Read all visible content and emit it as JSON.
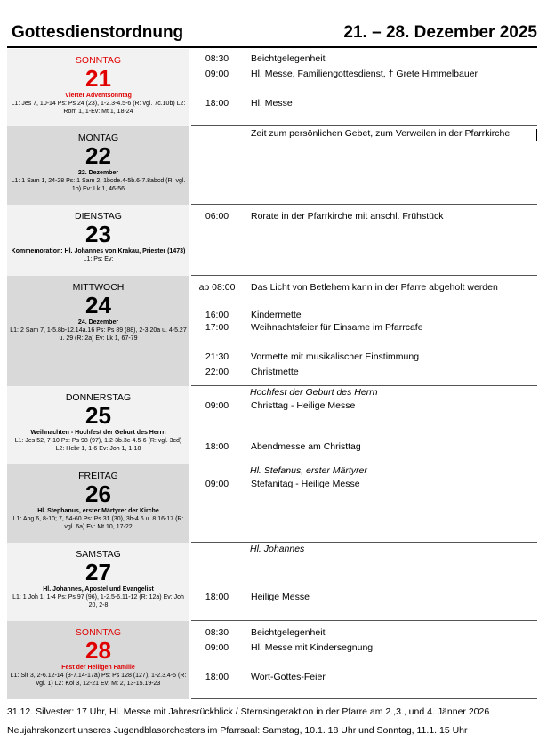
{
  "header": {
    "title": "Gottesdienstordnung",
    "dates": "21. – 28. Dezember 2025"
  },
  "days": [
    {
      "weekday": "SONNTAG",
      "num": "21",
      "feast": "Vierter Adventsonntag",
      "readings": "L1: Jes 7, 10-14 Ps: Ps 24 (23), 1-2.3-4.5-6 (R: vgl. 7c.10b) L2: Röm 1, 1-Ev: Mt 1, 18-24",
      "events": [
        {
          "time": "08:30",
          "text": "Beichtgelegenheit"
        },
        {
          "time": "09:00",
          "text": "Hl. Messe, Familiengottesdienst, † Grete Himmelbauer"
        },
        {
          "time": "18:00",
          "text": "Hl. Messe"
        }
      ]
    },
    {
      "weekday": "MONTAG",
      "num": "22",
      "feast": "22. Dezember",
      "readings": "L1: 1 Sam 1, 24-28 Ps: 1 Sam 2, 1bcde.4-5b.6-7.8abcd (R: vgl. 1b) Ev: Lk 1, 46-56",
      "events": [
        {
          "time": "",
          "text": "Zeit zum persönlichen Gebet, zum Verweilen in der Pfarrkirche"
        }
      ]
    },
    {
      "weekday": "DIENSTAG",
      "num": "23",
      "feast": "Kommemoration: Hl. Johannes von Krakau, Priester (1473)",
      "readings": "L1: Ps: Ev:",
      "events": [
        {
          "time": "06:00",
          "text": "Rorate in der Pfarrkirche mit anschl. Frühstück"
        }
      ]
    },
    {
      "weekday": "MITTWOCH",
      "num": "24",
      "feast": "24. Dezember",
      "readings": "L1: 2 Sam 7, 1-5.8b-12.14a.16 Ps: Ps 89 (88), 2-3.20a u. 4-5.27 u. 29 (R: 2a) Ev: Lk 1, 67-79",
      "events": [
        {
          "time": "ab 08:00",
          "text": "Das Licht von Betlehem kann in der Pfarre abgeholt werden"
        },
        {
          "time": "16:00",
          "text": "Kindermette"
        },
        {
          "time": "17:00",
          "text": "Weihnachtsfeier für Einsame im Pfarrcafe"
        },
        {
          "time": "21:30",
          "text": "Vormette mit musikalischer Einstimmung"
        },
        {
          "time": "22:00",
          "text": "Christmette"
        }
      ]
    },
    {
      "weekday": "DONNERSTAG",
      "num": "25",
      "feast": "Weihnachten - Hochfest der Geburt des Herrn",
      "readings": "L1: Jes 52, 7-10 Ps: Ps 98 (97), 1.2-3b.3c-4.5-6 (R: vgl. 3cd) L2: Hebr 1, 1-6 Ev: Joh 1, 1-18",
      "heading": "Hochfest der Geburt des Herrn",
      "events": [
        {
          "time": "09:00",
          "text": "Christtag - Heilige Messe"
        },
        {
          "time": "18:00",
          "text": "Abendmesse am Christtag"
        }
      ]
    },
    {
      "weekday": "FREITAG",
      "num": "26",
      "feast": "Hl. Stephanus, erster Märtyrer der Kirche",
      "readings": "L1: Apg 6, 8-10; 7, 54-60 Ps: Ps 31 (30), 3b-4.6 u. 8.16-17 (R: vgl. 6a) Ev: Mt 10, 17-22",
      "heading": "Hl. Stefanus, erster Märtyrer",
      "events": [
        {
          "time": "09:00",
          "text": "Stefanitag - Heilige Messe"
        }
      ]
    },
    {
      "weekday": "SAMSTAG",
      "num": "27",
      "feast": "Hl. Johannes, Apostel und Evangelist",
      "readings": "L1: 1 Joh 1, 1-4 Ps: Ps 97 (96), 1-2.5-6.11-12 (R: 12a) Ev: Joh 20, 2-8",
      "heading": "Hl. Johannes",
      "events": [
        {
          "time": "18:00",
          "text": "Heilige Messe"
        }
      ]
    },
    {
      "weekday": "SONNTAG",
      "num": "28",
      "feast": "Fest der Heiligen Familie",
      "readings": "L1: Sir 3, 2-6.12-14 (3-7.14-17a) Ps: Ps 128 (127), 1-2.3.4-5 (R: vgl. 1) L2: Kol 3, 12-21 Ev: Mt 2, 13-15.19-23",
      "events": [
        {
          "time": "08:30",
          "text": "Beichtgelegenheit"
        },
        {
          "time": "09:00",
          "text": "Hl. Messe mit Kindersegnung"
        },
        {
          "time": "18:00",
          "text": "Wort-Gottes-Feier"
        }
      ]
    }
  ],
  "footer": [
    "31.12. Silvester: 17 Uhr, Hl. Messe mit Jahresrückblick / Sternsingeraktion in der Pfarre am 2.,3., und 4. Jänner 2026",
    "Neujahrskonzert unseres Jugendblasorchesters im Pfarrsaal: Samstag, 10.1. 18 Uhr und Sonntag, 11.1. 15 Uhr"
  ],
  "colors": {
    "sunday_red": "#e00000",
    "shade_light": "#f2f2f2",
    "shade_dark": "#d9d9d9"
  }
}
